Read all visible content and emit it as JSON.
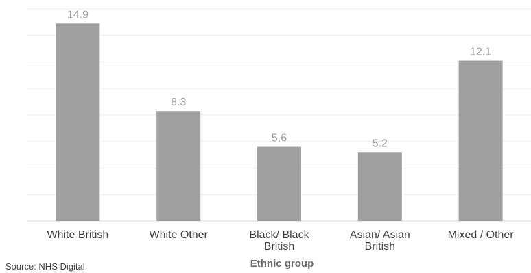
{
  "chart_data": {
    "type": "bar",
    "categories": [
      [
        "White British"
      ],
      [
        "White Other"
      ],
      [
        "Black/ Black",
        "British"
      ],
      [
        "Asian/ Asian",
        "British"
      ],
      [
        "Mixed / Other"
      ]
    ],
    "values": [
      14.9,
      8.3,
      5.6,
      5.2,
      12.1
    ],
    "value_labels": [
      "14.9",
      "8.3",
      "5.6",
      "5.2",
      "12.1"
    ],
    "xlabel": "Ethnic group",
    "ylabel": "",
    "ylim": [
      0,
      16
    ],
    "grid": "horizontal",
    "bar_color": "#a0a0a0",
    "value_label_color": "#9e9e9e",
    "grid_color": "#ececec"
  },
  "source_note": "Source: NHS Digital"
}
